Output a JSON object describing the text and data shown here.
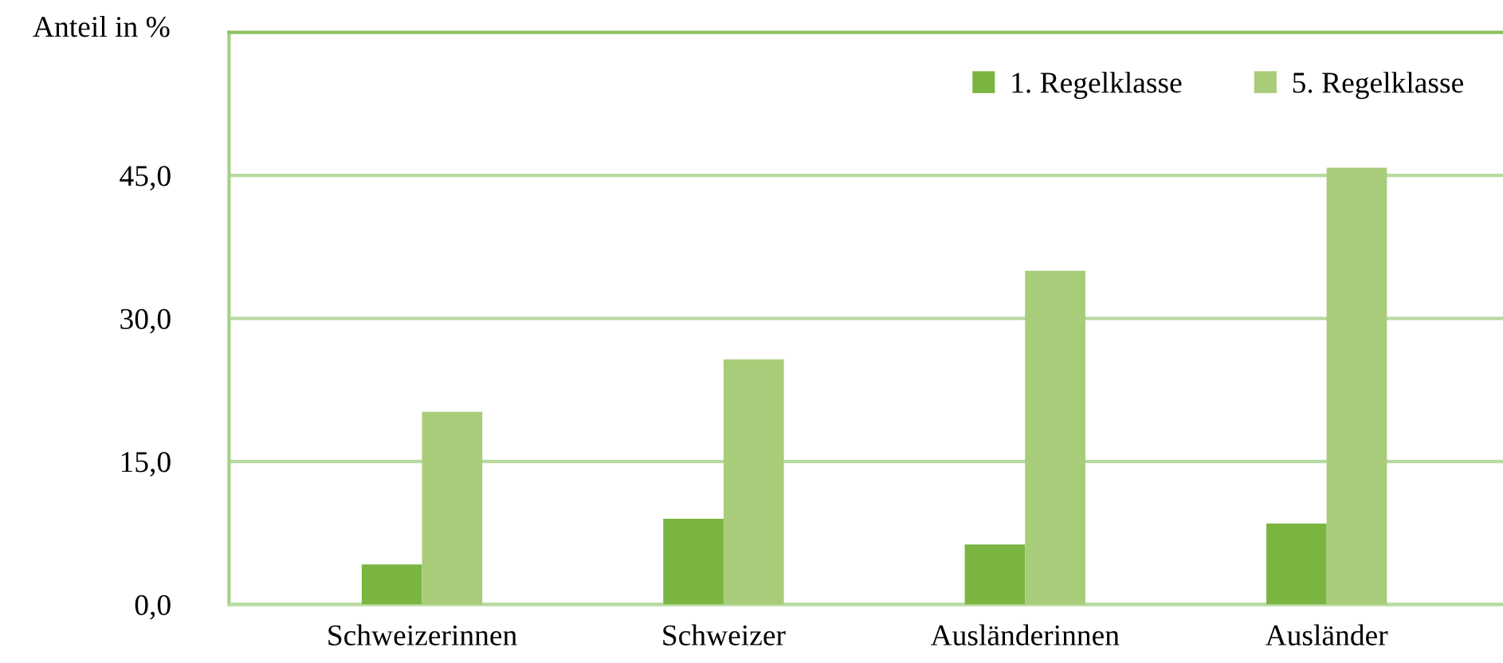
{
  "chart_data": {
    "type": "bar",
    "ylabel": "Anteil in %",
    "categories": [
      "Schweizerinnen",
      "Schweizer",
      "Ausländerinnen",
      "Ausländer"
    ],
    "series": [
      {
        "name": "1. Regelklasse",
        "color": "#7ab541",
        "values": [
          4.2,
          9.0,
          6.3,
          8.5
        ]
      },
      {
        "name": "5. Regelklasse",
        "color": "#a8cc7a",
        "values": [
          20.2,
          25.7,
          35.0,
          45.8
        ]
      }
    ],
    "ylim": [
      0,
      60
    ],
    "yticks": [
      {
        "value": 0,
        "label": "0,0"
      },
      {
        "value": 15,
        "label": "15,0"
      },
      {
        "value": 30,
        "label": "30,0"
      },
      {
        "value": 45,
        "label": "45,0"
      }
    ],
    "grid": "y",
    "legend": "top right"
  }
}
